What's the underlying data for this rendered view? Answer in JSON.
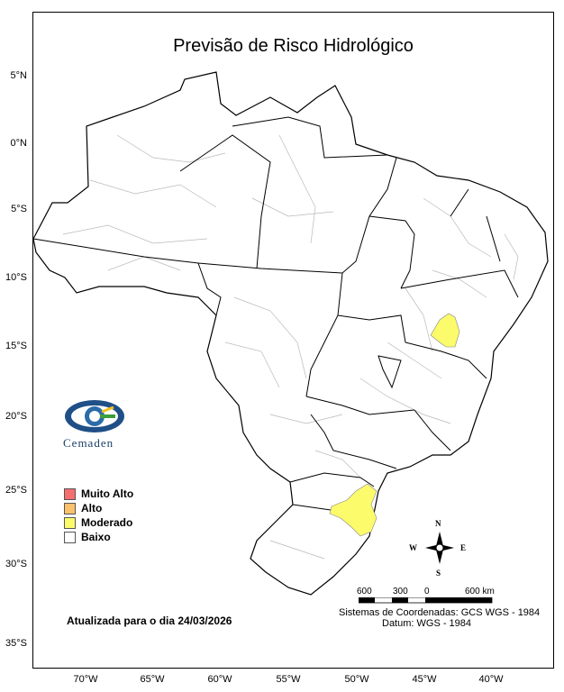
{
  "title": "Previsão de Risco Hidrológico",
  "latitude_labels": [
    "5°N",
    "0°N",
    "5°S",
    "10°S",
    "15°S",
    "20°S",
    "25°S",
    "30°S",
    "35°S"
  ],
  "longitude_labels": [
    "70°W",
    "65°W",
    "60°W",
    "55°W",
    "50°W",
    "45°W",
    "40°W"
  ],
  "legend": {
    "items": [
      {
        "label": "Muito Alto",
        "color": "#f76e6e"
      },
      {
        "label": "Alto",
        "color": "#fbc16b"
      },
      {
        "label": "Moderado",
        "color": "#fbfb6b"
      },
      {
        "label": "Baixo",
        "color": "#ffffff"
      }
    ]
  },
  "logo": {
    "text": "Cemaden",
    "icon": "cemaden-eye-icon"
  },
  "updated_text": "Atualizada para o dia 24/03/2026",
  "scale_bar": {
    "labels": [
      "600",
      "300",
      "0",
      "600 km"
    ]
  },
  "compass": {
    "n": "N",
    "s": "S",
    "e": "E",
    "w": "W"
  },
  "coordinate_system": "Sistemas de Coordenadas: GCS WGS - 1984",
  "datum": "Datum: WGS - 1984",
  "colors": {
    "moderado": "#fbfb6b",
    "state_border": "#000000",
    "municipality_border": "#b0b0b0"
  }
}
